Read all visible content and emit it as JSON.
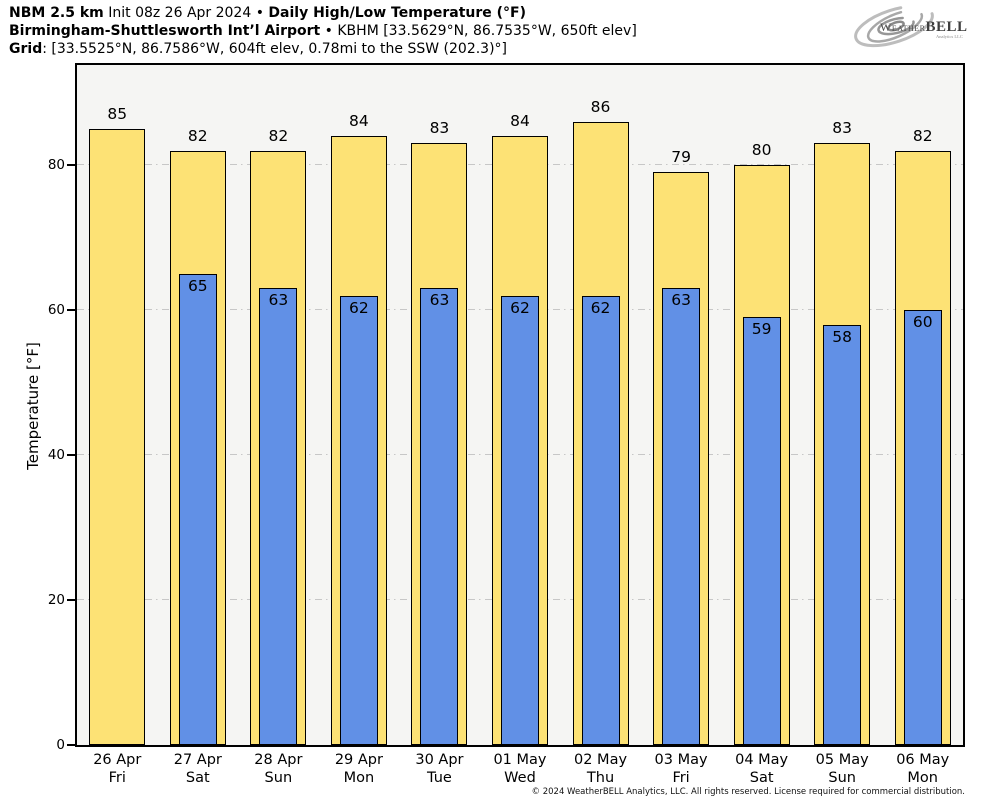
{
  "header": {
    "lines": [
      [
        {
          "text": "NBM 2.5 km",
          "bold": true
        },
        {
          "text": " Init 08z 26 Apr 2024 ",
          "bold": false
        },
        {
          "text": "• ",
          "bold": false
        },
        {
          "text": "Daily High/Low Temperature (°F)",
          "bold": true
        }
      ],
      [
        {
          "text": "Birmingham-Shuttlesworth Int’l Airport",
          "bold": true
        },
        {
          "text": " • KBHM [33.5629°N, 86.7535°W, 650ft elev]",
          "bold": false
        }
      ],
      [
        {
          "text": "Grid",
          "bold": true
        },
        {
          "text": ": [33.5525°N, 86.7586°W, 604ft elev, 0.78mi to the SSW (202.3)°]",
          "bold": false
        }
      ]
    ]
  },
  "logo": {
    "brand_prefix": "Weather",
    "brand_suffix": "BELL",
    "subtext": "Analytics LLC"
  },
  "axes": {
    "y_label": "Temperature [°F]",
    "y_ticks": [
      0,
      20,
      40,
      60,
      80
    ]
  },
  "footer": {
    "copyright": "© 2024 WeatherBELL Analytics, LLC. All rights reserved. License required for commercial distribution."
  },
  "chart_data": {
    "type": "bar",
    "title": "Daily High/Low Temperature (°F)",
    "ylabel": "Temperature [°F]",
    "ylim": [
      0,
      94
    ],
    "yticks": [
      0,
      20,
      40,
      60,
      80
    ],
    "grid": "horizontal dash-dot gridlines at 20/40/60/80, light gray, drawn behind bars",
    "legend": "none",
    "categories": [
      {
        "date": "26 Apr",
        "day": "Fri"
      },
      {
        "date": "27 Apr",
        "day": "Sat"
      },
      {
        "date": "28 Apr",
        "day": "Sun"
      },
      {
        "date": "29 Apr",
        "day": "Mon"
      },
      {
        "date": "30 Apr",
        "day": "Tue"
      },
      {
        "date": "01 May",
        "day": "Wed"
      },
      {
        "date": "02 May",
        "day": "Thu"
      },
      {
        "date": "03 May",
        "day": "Fri"
      },
      {
        "date": "04 May",
        "day": "Sat"
      },
      {
        "date": "05 May",
        "day": "Sun"
      },
      {
        "date": "06 May",
        "day": "Mon"
      }
    ],
    "series": [
      {
        "name": "Daily High",
        "color": "#fde275",
        "values": [
          85,
          82,
          82,
          84,
          83,
          84,
          86,
          79,
          80,
          83,
          82
        ]
      },
      {
        "name": "Daily Low",
        "color": "#6190e6",
        "values": [
          null,
          65,
          63,
          62,
          63,
          62,
          62,
          63,
          59,
          58,
          60
        ]
      }
    ],
    "colors": {
      "high_fill": "#fde275",
      "low_fill": "#6190e6",
      "bar_border": "#000000",
      "plot_bg": "#f5f5f3",
      "grid_color": "#c7c7c7"
    }
  }
}
